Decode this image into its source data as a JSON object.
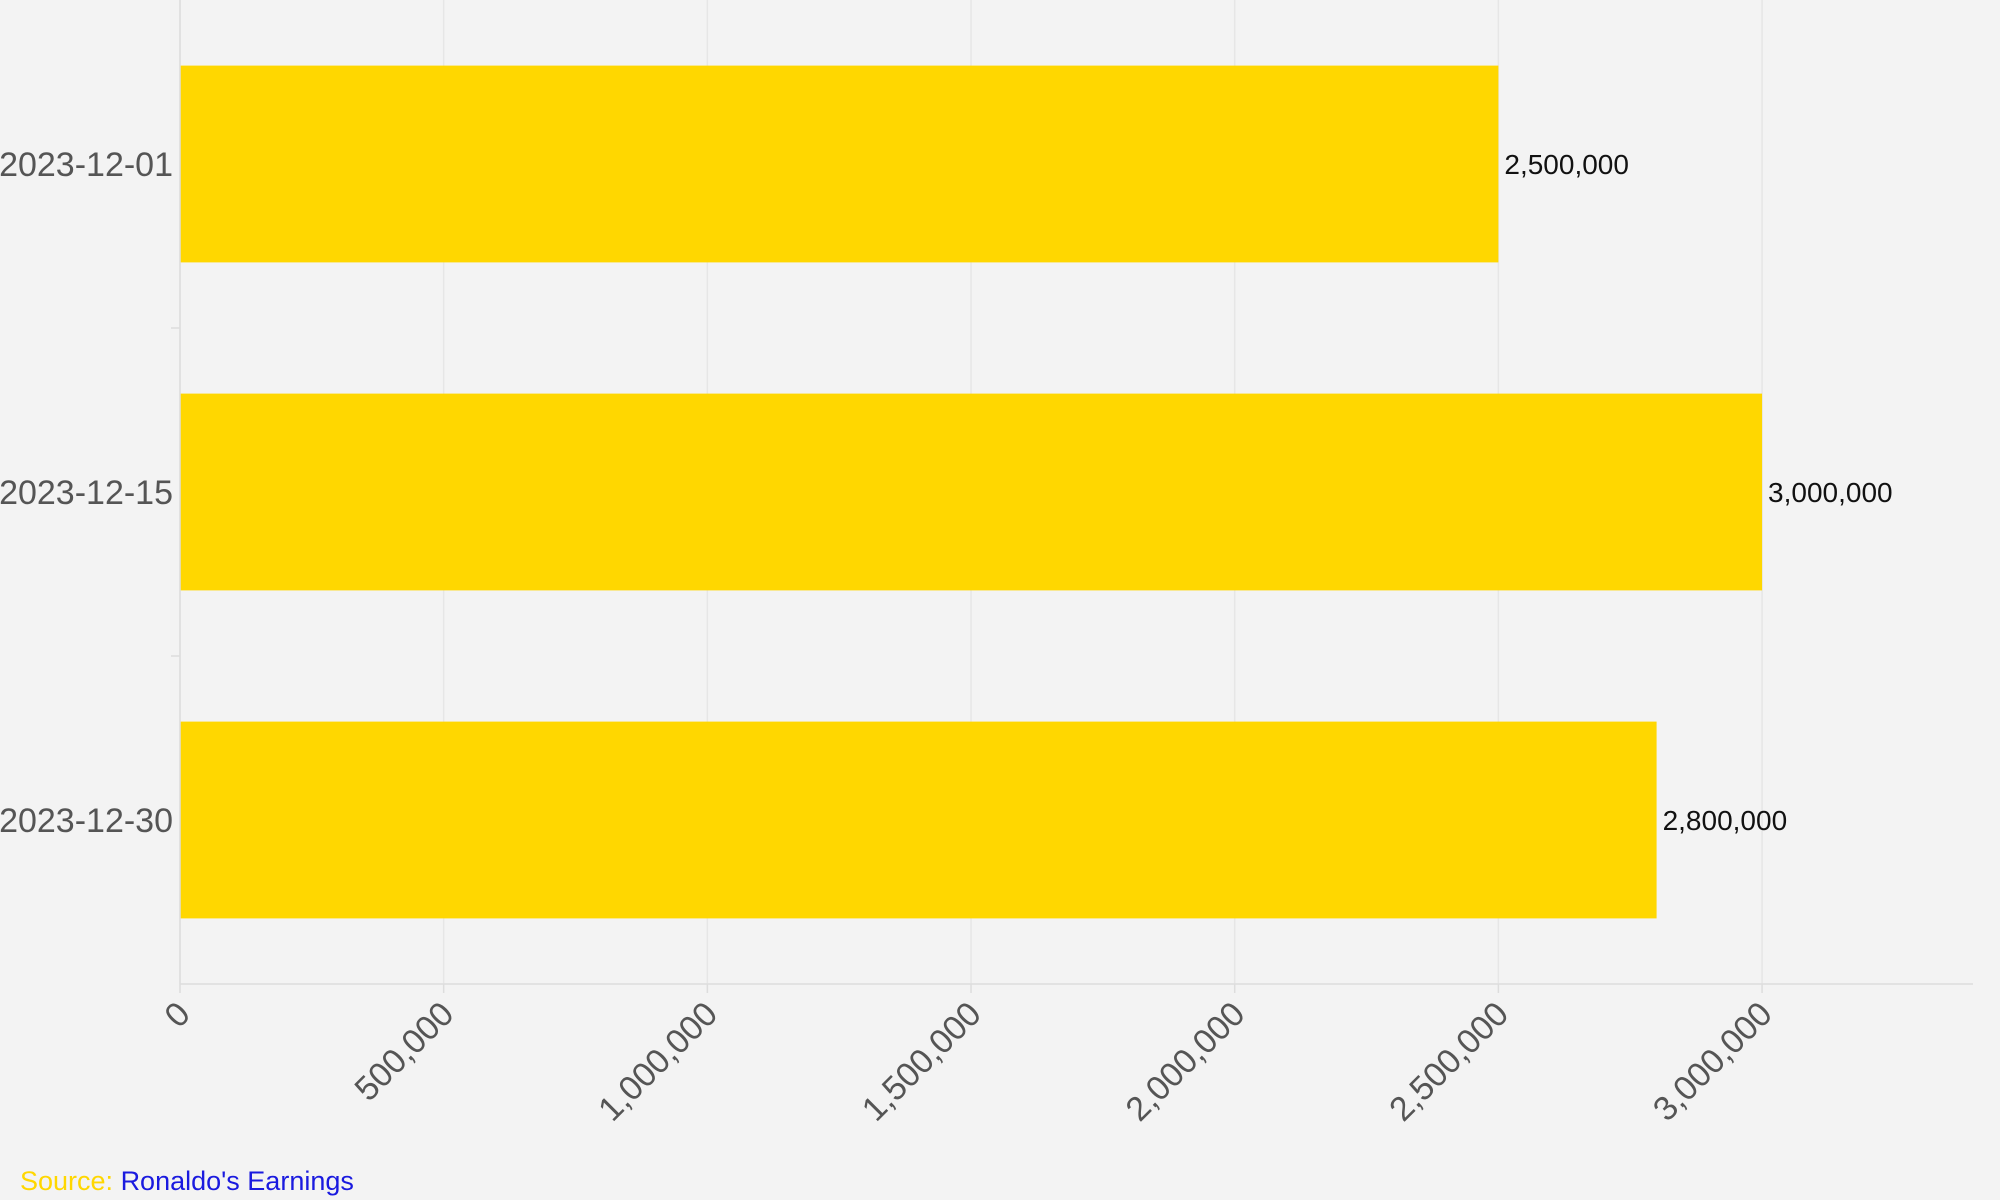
{
  "chart_data": {
    "type": "bar",
    "orientation": "horizontal",
    "categories": [
      "2023-12-01",
      "2023-12-15",
      "2023-12-30"
    ],
    "values": [
      2500000,
      3000000,
      2800000
    ],
    "data_labels": [
      "2,500,000",
      "3,000,000",
      "2,800,000"
    ],
    "xlim": [
      0,
      3400000
    ],
    "xticks": [
      0,
      500000,
      1000000,
      1500000,
      2000000,
      2500000,
      3000000
    ],
    "xtick_labels": [
      "0",
      "500,000",
      "1,000,000",
      "1,500,000",
      "2,000,000",
      "2,500,000",
      "3,000,000"
    ],
    "title": "",
    "xlabel": "",
    "ylabel": "",
    "grid": true,
    "legend": "none",
    "bar_color": "#ffd700"
  },
  "source": {
    "prefix": "Source: ",
    "link_text": "Ronaldo's Earnings",
    "prefix_color": "#ffd700",
    "link_color": "#1a1adf"
  },
  "colors": {
    "background": "#f3f3f3",
    "grid": "#e6e6e6",
    "axis": "#dddddd"
  }
}
